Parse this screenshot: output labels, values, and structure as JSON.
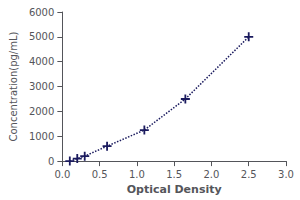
{
  "chart_data": {
    "type": "line",
    "xlabel": "Optical Density",
    "ylabel": "Concentration(pg/mL)",
    "x": [
      0.1,
      0.2,
      0.3,
      0.6,
      1.1,
      1.65,
      2.5
    ],
    "values": [
      0,
      100,
      200,
      600,
      1250,
      2500,
      5000
    ],
    "xlim": [
      0,
      3
    ],
    "ylim": [
      0,
      6000
    ],
    "xticks": [
      {
        "value": 0,
        "label": "0.0"
      },
      0.5,
      {
        "value": 1,
        "label": "1.0"
      },
      1.5,
      {
        "value": 2,
        "label": "2.0"
      },
      2.5,
      {
        "value": 3,
        "label": "3.0"
      }
    ],
    "yticks": [
      0,
      1000,
      2000,
      3000,
      4000,
      5000,
      6000
    ],
    "color": "#1a1a5e",
    "marker": "plus",
    "line_style": "dotted",
    "grid": false
  }
}
